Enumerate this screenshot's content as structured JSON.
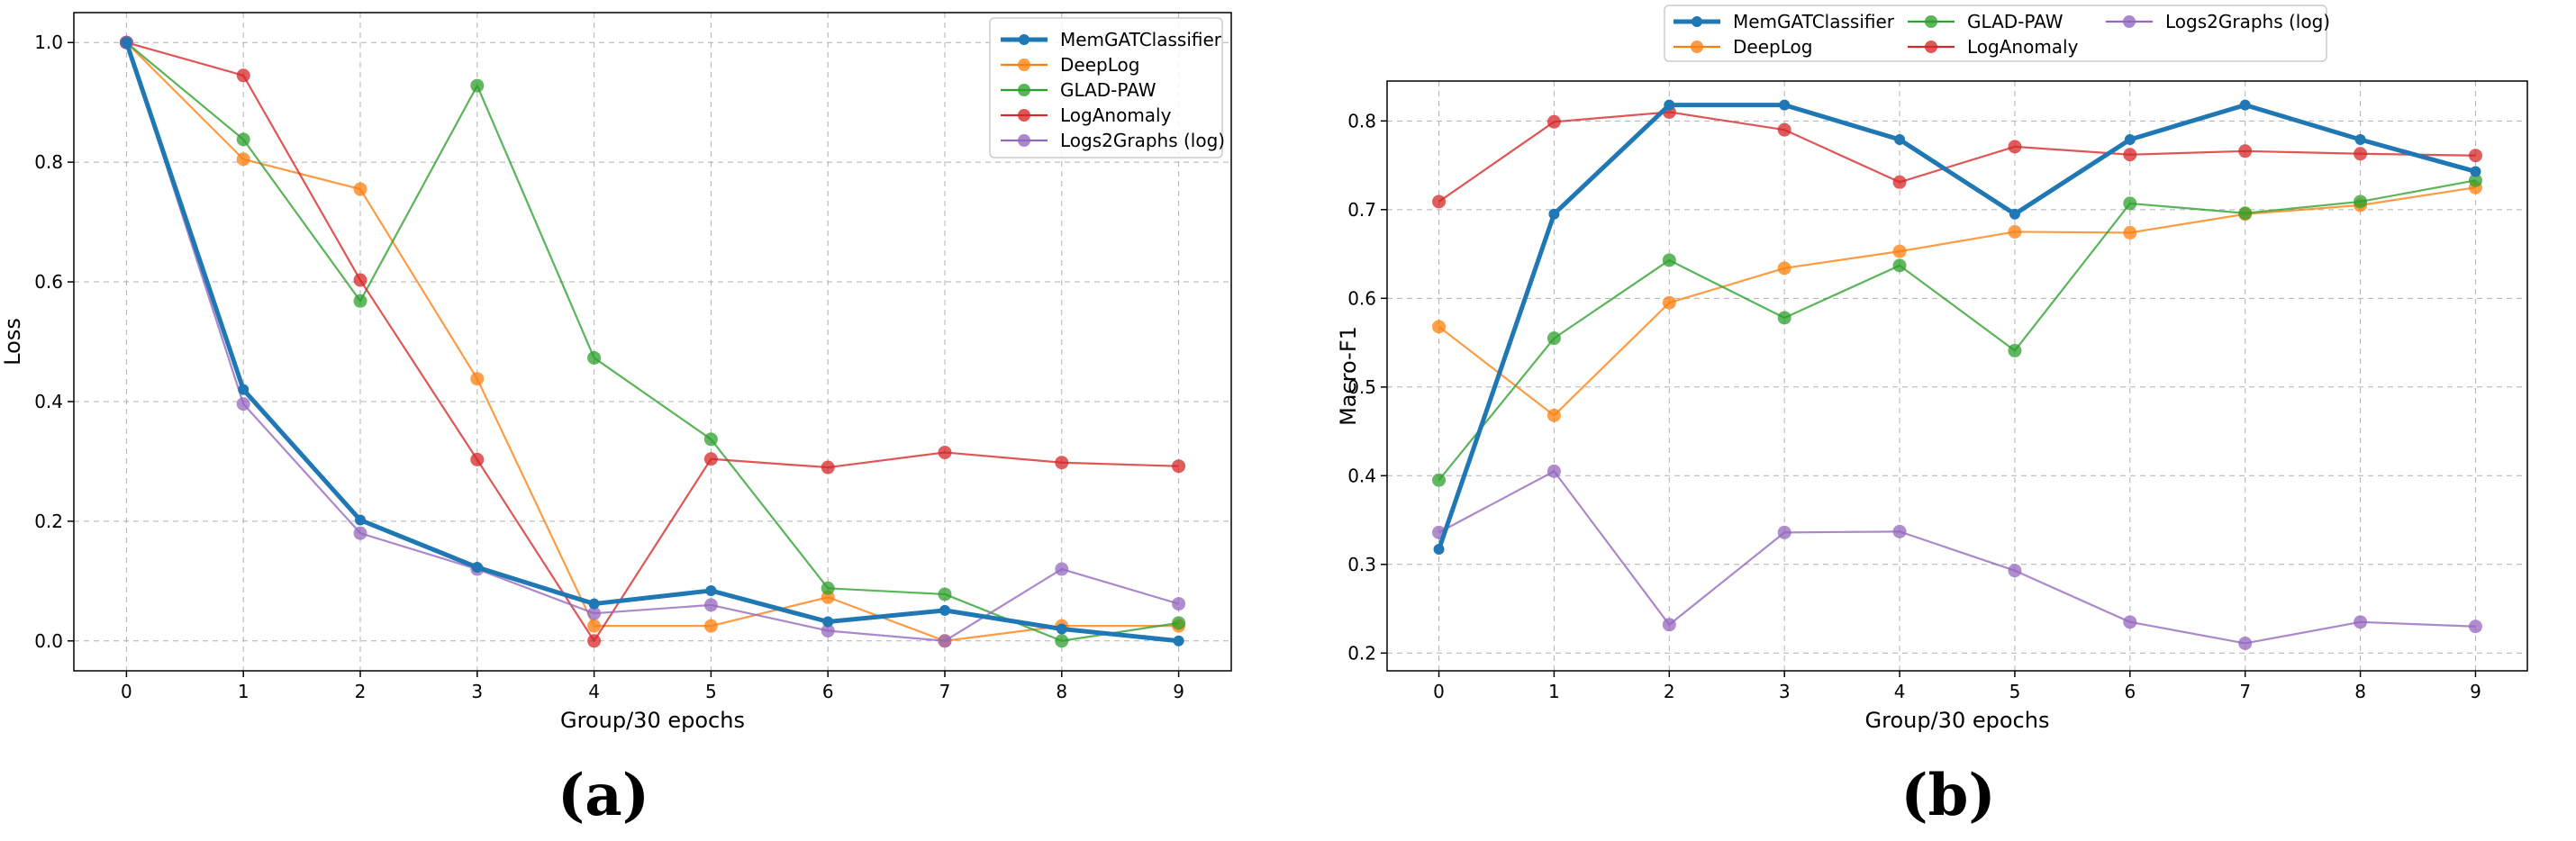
{
  "chart_data": [
    {
      "type": "line",
      "panel_label": "(a)",
      "xlabel": "Group/30 epochs",
      "ylabel": "Loss",
      "x": [
        0,
        1,
        2,
        3,
        4,
        5,
        6,
        7,
        8,
        9
      ],
      "xlim": [
        -0.45,
        9.45
      ],
      "ylim": [
        -0.05,
        1.05
      ],
      "yticks": [
        0.0,
        0.2,
        0.4,
        0.6,
        0.8,
        1.0
      ],
      "ytick_labels": [
        "0.0",
        "0.2",
        "0.4",
        "0.6",
        "0.8",
        "1.0"
      ],
      "grid": true,
      "legend_position": "top-right",
      "legend_columns": 1,
      "series": [
        {
          "name": "MemGATClassifier",
          "color": "#1f77b4",
          "bold": true,
          "values": [
            1.0,
            0.42,
            0.202,
            0.123,
            0.062,
            0.084,
            0.032,
            0.051,
            0.02,
            0.0
          ]
        },
        {
          "name": "DeepLog",
          "color": "#ff7f0e",
          "bold": false,
          "values": [
            1.0,
            0.805,
            0.755,
            0.438,
            0.025,
            0.025,
            0.073,
            0.0,
            0.025,
            0.025
          ]
        },
        {
          "name": "GLAD-PAW",
          "color": "#2ca02c",
          "bold": false,
          "values": [
            1.0,
            0.838,
            0.568,
            0.928,
            0.473,
            0.337,
            0.088,
            0.078,
            0.0,
            0.03
          ]
        },
        {
          "name": "LogAnomaly",
          "color": "#d62728",
          "bold": false,
          "values": [
            1.0,
            0.945,
            0.603,
            0.303,
            0.0,
            0.304,
            0.29,
            0.315,
            0.298,
            0.292
          ]
        },
        {
          "name": "Logs2Graphs (log)",
          "color": "#9467bd",
          "bold": false,
          "values": [
            1.0,
            0.396,
            0.18,
            0.12,
            0.046,
            0.06,
            0.017,
            0.0,
            0.12,
            0.062
          ]
        }
      ]
    },
    {
      "type": "line",
      "panel_label": "(b)",
      "xlabel": "Group/30 epochs",
      "ylabel": "Macro-F1",
      "x": [
        0,
        1,
        2,
        3,
        4,
        5,
        6,
        7,
        8,
        9
      ],
      "xlim": [
        -0.45,
        9.45
      ],
      "ylim": [
        0.18,
        0.845
      ],
      "yticks": [
        0.2,
        0.3,
        0.4,
        0.5,
        0.6,
        0.7,
        0.8
      ],
      "ytick_labels": [
        "0.2",
        "0.3",
        "0.4",
        "0.5",
        "0.6",
        "0.7",
        "0.8"
      ],
      "grid": true,
      "legend_position": "top-center (above plot)",
      "legend_columns": 3,
      "series": [
        {
          "name": "MemGATClassifier",
          "color": "#1f77b4",
          "bold": true,
          "values": [
            0.317,
            0.695,
            0.818,
            0.818,
            0.779,
            0.695,
            0.779,
            0.818,
            0.779,
            0.743
          ]
        },
        {
          "name": "DeepLog",
          "color": "#ff7f0e",
          "bold": false,
          "values": [
            0.568,
            0.468,
            0.595,
            0.634,
            0.653,
            0.675,
            0.674,
            0.695,
            0.705,
            0.725
          ]
        },
        {
          "name": "GLAD-PAW",
          "color": "#2ca02c",
          "bold": false,
          "values": [
            0.395,
            0.555,
            0.643,
            0.578,
            0.637,
            0.541,
            0.707,
            0.696,
            0.709,
            0.733
          ]
        },
        {
          "name": "LogAnomaly",
          "color": "#d62728",
          "bold": false,
          "values": [
            0.709,
            0.799,
            0.81,
            0.79,
            0.731,
            0.771,
            0.762,
            0.766,
            0.763,
            0.761
          ]
        },
        {
          "name": "Logs2Graphs (log)",
          "color": "#9467bd",
          "bold": false,
          "values": [
            0.336,
            0.405,
            0.232,
            0.336,
            0.337,
            0.293,
            0.235,
            0.211,
            0.235,
            0.23
          ]
        }
      ]
    }
  ]
}
